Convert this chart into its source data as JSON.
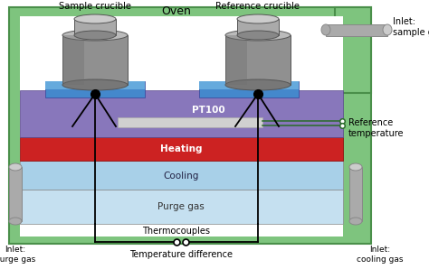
{
  "bg_color": "#ffffff",
  "oven_green": "#7ec47e",
  "oven_edge": "#4a8f4a",
  "white": "#ffffff",
  "purge_color": "#c5e0f0",
  "cooling_color": "#a8d0e8",
  "heating_color": "#cc2222",
  "pt100_color": "#8877bb",
  "pt100_bar_color": "#d0d0d0",
  "crucible_base_blue": "#5588bb",
  "crucible_base_dark": "#3366aa",
  "crucible_gray": "#999999",
  "crucible_light": "#bbbbbb",
  "crucible_dark": "#777777",
  "pipe_light": "#cccccc",
  "pipe_mid": "#aaaaaa",
  "pipe_dark": "#888888",
  "black": "#000000",
  "label_oven": "Oven",
  "label_sample_crucible": "Sample crucible",
  "label_reference_crucible": "Reference crucible",
  "label_pt100": "PT100",
  "label_heating": "Heating",
  "label_cooling": "Cooling",
  "label_purge": "Purge gas",
  "label_thermocouples": "Thermocouples",
  "label_temp_diff": "Temperature difference",
  "label_ref_temp": "Reference\ntemperature",
  "label_inlet_purge": "Inlet:\npurge gas",
  "label_inlet_cooling": "Inlet:\ncooling gas",
  "label_inlet_sample": "Inlet:\nsample gas",
  "tc_line_color": "#222222"
}
